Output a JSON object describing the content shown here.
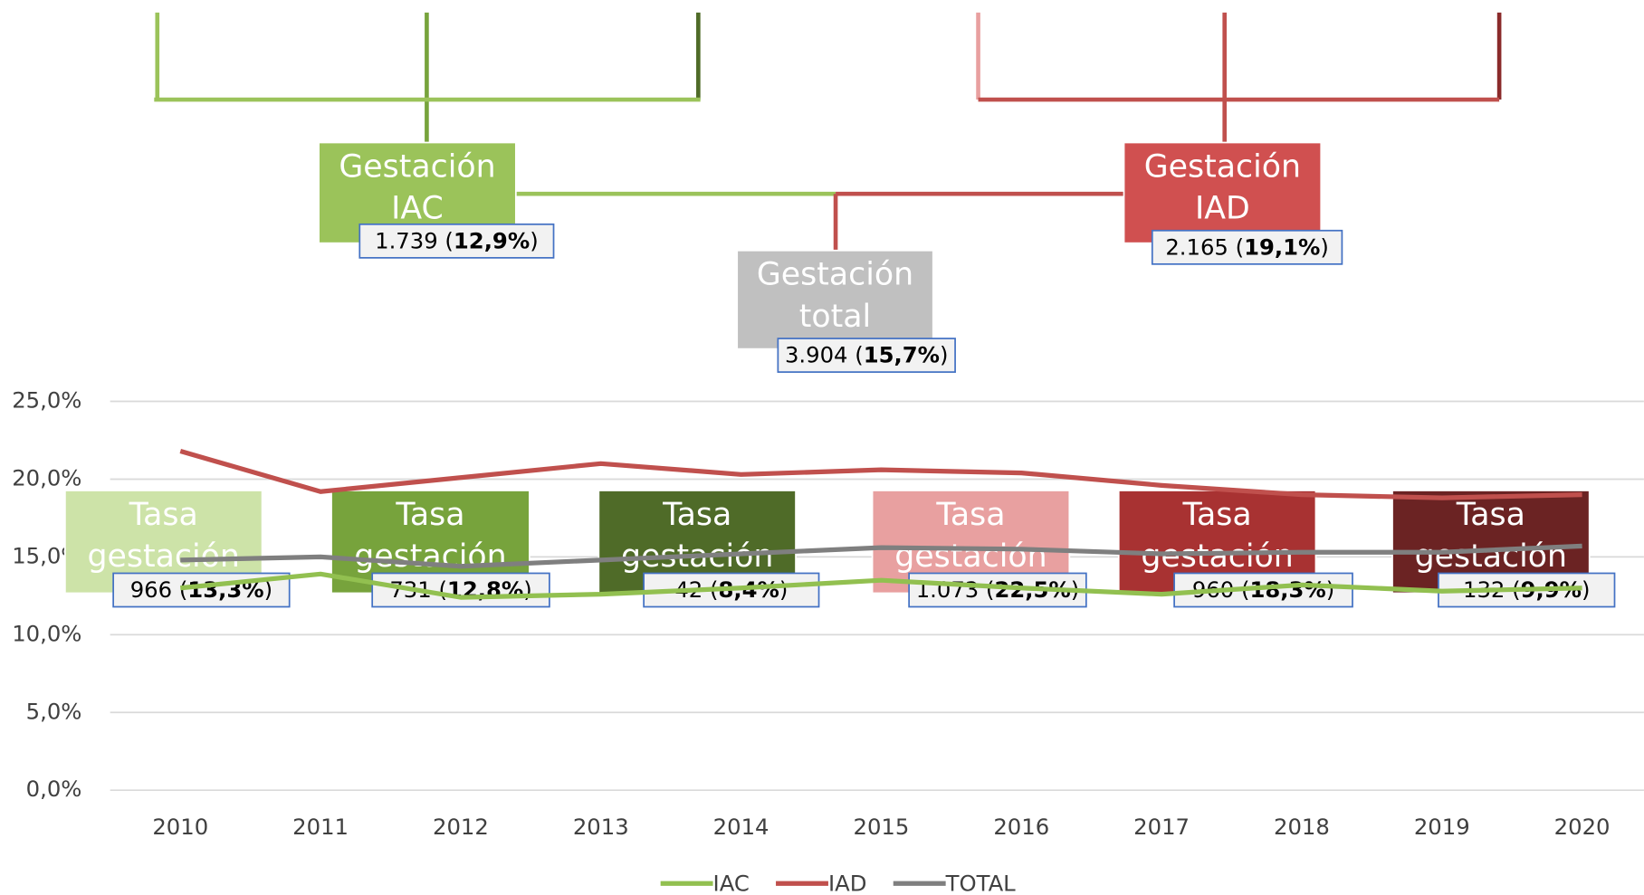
{
  "chart_data": {
    "type": "line",
    "categories": [
      "2010",
      "2011",
      "2012",
      "2013",
      "2014",
      "2015",
      "2016",
      "2017",
      "2018",
      "2019",
      "2020"
    ],
    "series": [
      {
        "name": "IAC",
        "color": "#92c050",
        "values": [
          13.0,
          13.9,
          12.4,
          12.6,
          13.0,
          13.5,
          13.0,
          12.6,
          13.2,
          12.8,
          13.0
        ]
      },
      {
        "name": "IAD",
        "color": "#c0504d",
        "values": [
          21.8,
          19.2,
          20.1,
          21.0,
          20.3,
          20.6,
          20.4,
          19.6,
          19.0,
          18.8,
          19.0
        ]
      },
      {
        "name": "TOTAL",
        "color": "#7f7f7f",
        "values": [
          14.8,
          15.0,
          14.4,
          14.8,
          15.2,
          15.6,
          15.5,
          15.2,
          15.3,
          15.3,
          15.7
        ]
      }
    ],
    "ylim": [
      0,
      25
    ],
    "yticks": [
      {
        "value": 0,
        "label": "0,0%"
      },
      {
        "value": 5,
        "label": "5,0%"
      },
      {
        "value": 10,
        "label": "10,0%"
      },
      {
        "value": 15,
        "label": "15,0%"
      },
      {
        "value": 20,
        "label": "20,0%"
      },
      {
        "value": 25,
        "label": "25,0%"
      }
    ],
    "grid": true,
    "legend": "bottom"
  },
  "diagram": {
    "nodes": [
      {
        "lines": [
          "Gestación",
          "total"
        ],
        "value_label": "3.904 (15,7%)",
        "color": "#c0c0c0"
      },
      {
        "lines": [
          "Gestación",
          "IAC"
        ],
        "value_label": "1.739 (12,9%)",
        "color": "#9bc35a"
      },
      {
        "lines": [
          "Gestación",
          "IAD"
        ],
        "value_label": "2.165 (19,1%)",
        "color": "#d05050"
      },
      {
        "lines": [
          "Tasa",
          "gestación"
        ],
        "value_label": "966 (13,3%)",
        "color": "#cde3a8"
      },
      {
        "lines": [
          "Tasa",
          "gestación"
        ],
        "value_label": "731 (12,8%)",
        "color": "#77a33c"
      },
      {
        "lines": [
          "Tasa",
          "gestación"
        ],
        "value_label": "42 (8,4%)",
        "color": "#4f6b28"
      },
      {
        "lines": [
          "Tasa",
          "gestación"
        ],
        "value_label": "1.073 (22,5%)",
        "color": "#e8a0a0"
      },
      {
        "lines": [
          "Tasa",
          "gestación"
        ],
        "value_label": "960 (18,3%)",
        "color": "#a83232"
      },
      {
        "lines": [
          "Tasa",
          "gestación"
        ],
        "value_label": "132 (9,9%)",
        "color": "#6b2323"
      }
    ]
  }
}
